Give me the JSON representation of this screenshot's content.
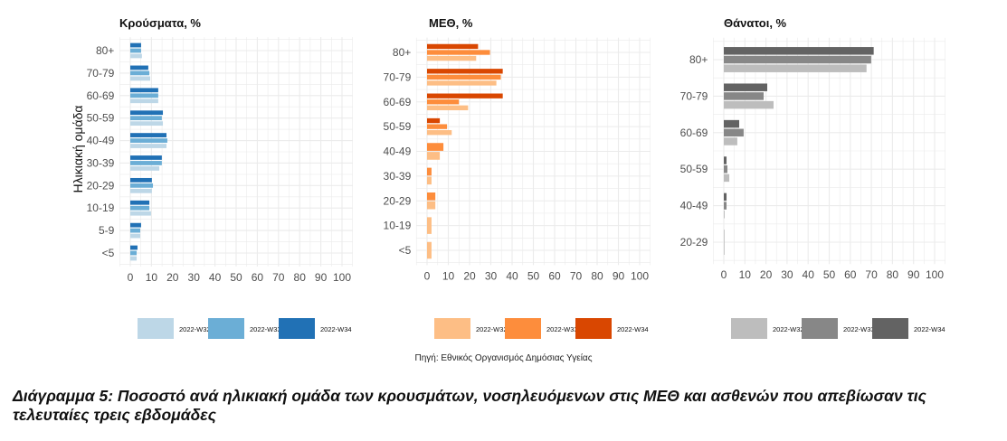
{
  "chart_data": [
    {
      "type": "bar",
      "orientation": "horizontal",
      "title": "Κρούσματα, %",
      "ylabel": "Ηλικιακή ομάδα",
      "xlabel": "",
      "xlim": [
        0,
        100
      ],
      "xticks": [
        0,
        10,
        20,
        30,
        40,
        50,
        60,
        70,
        80,
        90,
        100
      ],
      "categories": [
        "80+",
        "70-79",
        "60-69",
        "50-59",
        "40-49",
        "30-39",
        "20-29",
        "10-19",
        "5-9",
        "<5"
      ],
      "series": [
        {
          "name": "2022-W34",
          "color": "#2171b5",
          "values": [
            5.1,
            8.5,
            13.2,
            15.4,
            17.1,
            14.9,
            10.2,
            9.0,
            5.1,
            3.4
          ]
        },
        {
          "name": "2022-W33",
          "color": "#6baed6",
          "values": [
            5.1,
            9.0,
            13.2,
            14.9,
            17.5,
            14.9,
            10.7,
            9.0,
            4.7,
            3.0
          ]
        },
        {
          "name": "2022-W32",
          "color": "#bdd7e7",
          "values": [
            5.5,
            9.4,
            13.2,
            15.4,
            17.1,
            13.7,
            10.2,
            9.8,
            4.7,
            3.0
          ]
        }
      ],
      "legend": [
        "2022-W32",
        "2022-W33",
        "2022-W34"
      ],
      "legend_position": "bottom",
      "grid": true
    },
    {
      "type": "bar",
      "orientation": "horizontal",
      "title": "ΜΕΘ, %",
      "xlim": [
        0,
        100
      ],
      "xticks": [
        0,
        10,
        20,
        30,
        40,
        50,
        60,
        70,
        80,
        90,
        100
      ],
      "categories": [
        "80+",
        "70-79",
        "60-69",
        "50-59",
        "40-49",
        "30-39",
        "20-29",
        "10-19",
        "<5"
      ],
      "series": [
        {
          "name": "2022-W34",
          "color": "#d94701",
          "values": [
            24.0,
            35.6,
            35.6,
            6.0,
            null,
            null,
            null,
            null,
            null
          ]
        },
        {
          "name": "2022-W33",
          "color": "#fd8d3c",
          "values": [
            29.6,
            34.7,
            15.0,
            9.4,
            7.7,
            2.1,
            3.9,
            null,
            null
          ]
        },
        {
          "name": "2022-W32",
          "color": "#fdbe85",
          "values": [
            23.1,
            32.6,
            19.3,
            11.6,
            6.0,
            2.1,
            3.9,
            2.1,
            2.1
          ]
        }
      ],
      "legend": [
        "2022-W32",
        "2022-W33",
        "2022-W34"
      ],
      "legend_position": "bottom",
      "grid": true
    },
    {
      "type": "bar",
      "orientation": "horizontal",
      "title": "Θάνατοι, %",
      "xlim": [
        0,
        100
      ],
      "xticks": [
        0,
        10,
        20,
        30,
        40,
        50,
        60,
        70,
        80,
        90,
        100
      ],
      "categories": [
        "80+",
        "70-79",
        "60-69",
        "50-59",
        "40-49",
        "20-29"
      ],
      "series": [
        {
          "name": "2022-W34",
          "color": "#636363",
          "values": [
            71.1,
            20.6,
            7.3,
            1.3,
            1.3,
            null
          ]
        },
        {
          "name": "2022-W33",
          "color": "#878787",
          "values": [
            69.9,
            18.9,
            9.4,
            1.7,
            1.3,
            null
          ]
        },
        {
          "name": "2022-W32",
          "color": "#bdbdbd",
          "values": [
            67.7,
            23.6,
            6.4,
            2.6,
            0.4,
            0.3
          ]
        }
      ],
      "legend": [
        "2022-W32",
        "2022-W33",
        "2022-W34"
      ],
      "legend_position": "bottom",
      "grid": true
    }
  ],
  "source": "Πηγή: Εθνικός Οργανισμός Δημόσιας Υγείας",
  "caption": "Διάγραμμα 5: Ποσοστό ανά ηλικιακή ομάδα των κρουσμάτων, νοσηλευόμενων στις ΜΕΘ και ασθενών που απεβίωσαν τις τελευταίες τρεις εβδομάδες"
}
